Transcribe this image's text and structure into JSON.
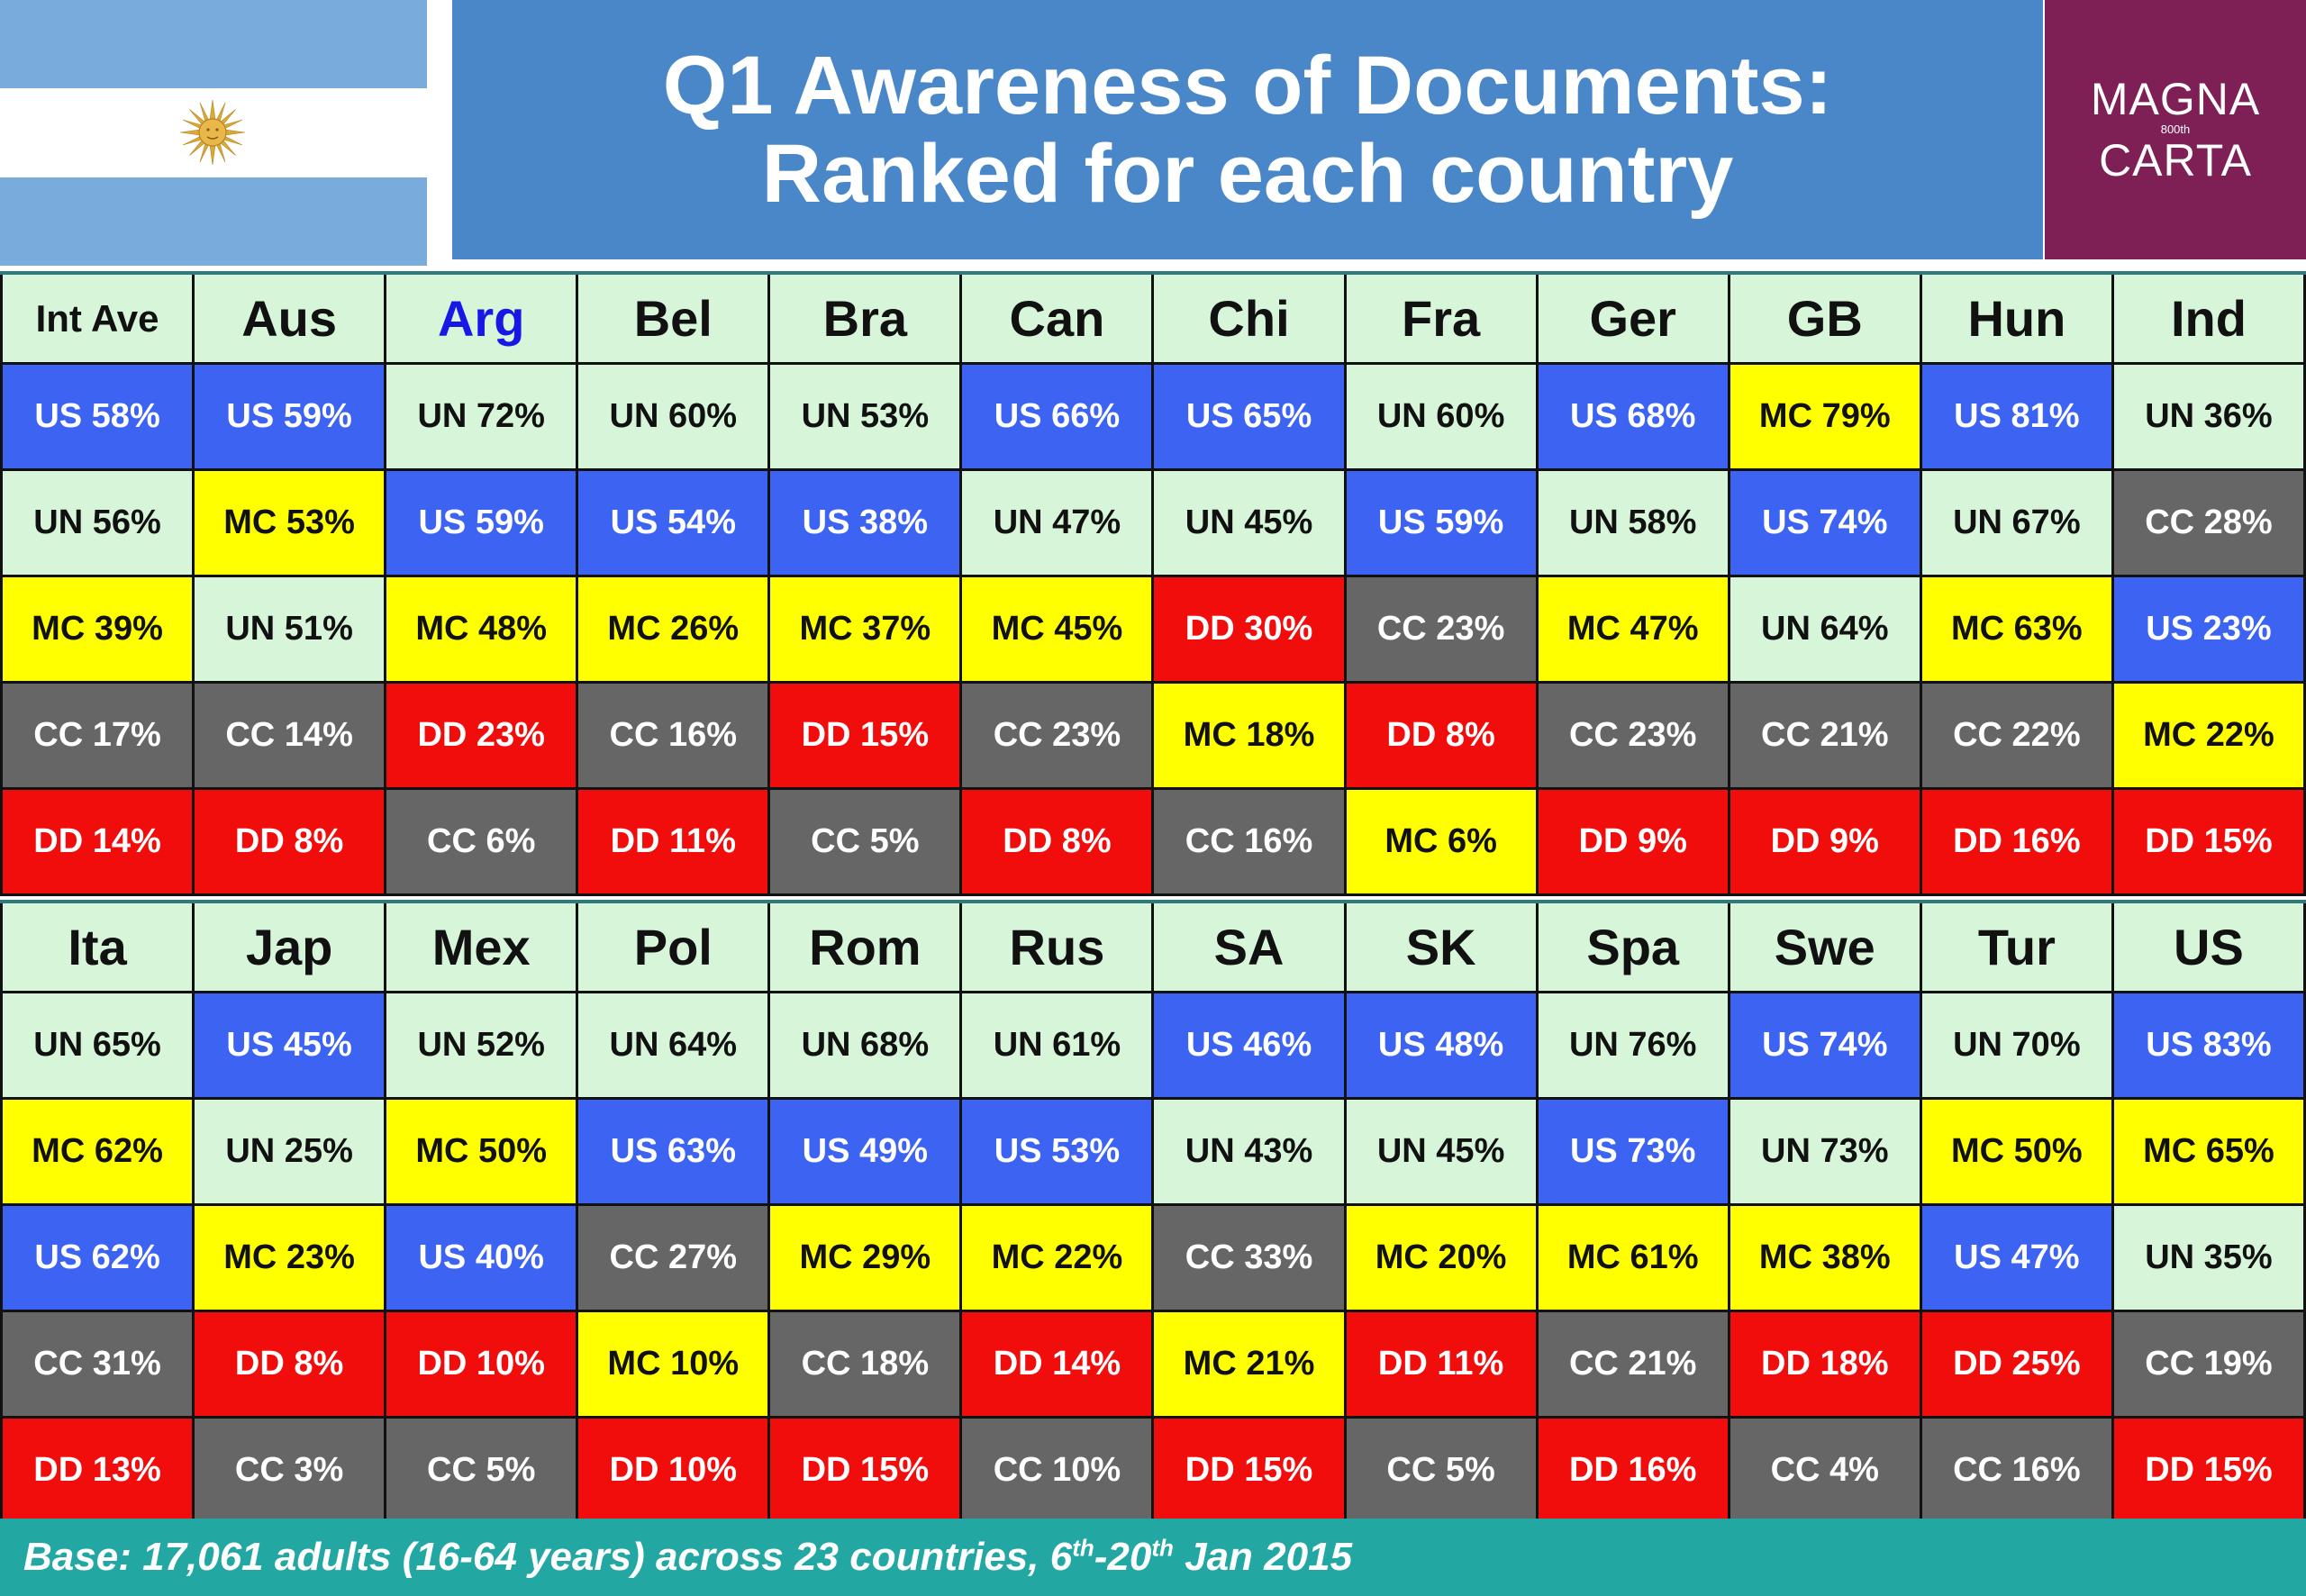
{
  "header": {
    "title_line1": "Q1 Awareness of Documents:",
    "title_line2": "Ranked for each country",
    "logo": {
      "line1": "MAGNA",
      "small": "800th",
      "line2": "CARTA"
    }
  },
  "footer": {
    "prefix": "Base: 17,061 adults (16-64 years) across 23 countries, 6",
    "sup1": "th",
    "mid": "-20",
    "sup2": "th",
    "suffix": " Jan 2015"
  },
  "colors": {
    "US": "#3d63f2",
    "UN": "#d7f5d9",
    "MC": "#ffff00",
    "CC": "#666666",
    "DD": "#f20d0d",
    "title_band": "#4a87c8",
    "logo_bg": "#7e1f56",
    "footer_bg": "#22a7a3",
    "flag_blue": "#79acdd",
    "highlight_header": "#1818e6"
  },
  "chart_data": [
    {
      "type": "table",
      "columns": [
        {
          "label": "Int Ave",
          "cells": [
            {
              "label": "US 58%",
              "doc": "US",
              "value": 58
            },
            {
              "label": "UN 56%",
              "doc": "UN",
              "value": 56
            },
            {
              "label": "MC 39%",
              "doc": "MC",
              "value": 39
            },
            {
              "label": "CC 17%",
              "doc": "CC",
              "value": 17
            },
            {
              "label": "DD 14%",
              "doc": "DD",
              "value": 14
            }
          ]
        },
        {
          "label": "Aus",
          "cells": [
            {
              "label": "US 59%",
              "doc": "US",
              "value": 59
            },
            {
              "label": "MC 53%",
              "doc": "MC",
              "value": 53
            },
            {
              "label": "UN 51%",
              "doc": "UN",
              "value": 51
            },
            {
              "label": "CC 14%",
              "doc": "CC",
              "value": 14
            },
            {
              "label": "DD 8%",
              "doc": "DD",
              "value": 8
            }
          ]
        },
        {
          "label": "Arg",
          "highlight": true,
          "cells": [
            {
              "label": "UN 72%",
              "doc": "UN",
              "value": 72
            },
            {
              "label": "US 59%",
              "doc": "US",
              "value": 59
            },
            {
              "label": "MC 48%",
              "doc": "MC",
              "value": 48
            },
            {
              "label": "DD 23%",
              "doc": "DD",
              "value": 23
            },
            {
              "label": "CC 6%",
              "doc": "CC",
              "value": 6
            }
          ]
        },
        {
          "label": "Bel",
          "cells": [
            {
              "label": "UN 60%",
              "doc": "UN",
              "value": 60
            },
            {
              "label": "US 54%",
              "doc": "US",
              "value": 54
            },
            {
              "label": "MC 26%",
              "doc": "MC",
              "value": 26
            },
            {
              "label": "CC 16%",
              "doc": "CC",
              "value": 16
            },
            {
              "label": "DD 11%",
              "doc": "DD",
              "value": 11
            }
          ]
        },
        {
          "label": "Bra",
          "cells": [
            {
              "label": "UN 53%",
              "doc": "UN",
              "value": 53
            },
            {
              "label": "US 38%",
              "doc": "US",
              "value": 38
            },
            {
              "label": "MC 37%",
              "doc": "MC",
              "value": 37
            },
            {
              "label": "DD 15%",
              "doc": "DD",
              "value": 15
            },
            {
              "label": "CC 5%",
              "doc": "CC",
              "value": 5
            }
          ]
        },
        {
          "label": "Can",
          "cells": [
            {
              "label": "US 66%",
              "doc": "US",
              "value": 66
            },
            {
              "label": "UN 47%",
              "doc": "UN",
              "value": 47
            },
            {
              "label": "MC 45%",
              "doc": "MC",
              "value": 45
            },
            {
              "label": "CC 23%",
              "doc": "CC",
              "value": 23
            },
            {
              "label": "DD 8%",
              "doc": "DD",
              "value": 8
            }
          ]
        },
        {
          "label": "Chi",
          "cells": [
            {
              "label": "US 65%",
              "doc": "US",
              "value": 65
            },
            {
              "label": "UN 45%",
              "doc": "UN",
              "value": 45
            },
            {
              "label": "DD 30%",
              "doc": "DD",
              "value": 30
            },
            {
              "label": "MC 18%",
              "doc": "MC",
              "value": 18
            },
            {
              "label": "CC 16%",
              "doc": "CC",
              "value": 16
            }
          ]
        },
        {
          "label": "Fra",
          "cells": [
            {
              "label": "UN 60%",
              "doc": "UN",
              "value": 60
            },
            {
              "label": "US 59%",
              "doc": "US",
              "value": 59
            },
            {
              "label": "CC 23%",
              "doc": "CC",
              "value": 23
            },
            {
              "label": "DD 8%",
              "doc": "DD",
              "value": 8
            },
            {
              "label": "MC 6%",
              "doc": "MC",
              "value": 6
            }
          ]
        },
        {
          "label": "Ger",
          "cells": [
            {
              "label": "US 68%",
              "doc": "US",
              "value": 68
            },
            {
              "label": "UN 58%",
              "doc": "UN",
              "value": 58
            },
            {
              "label": "MC 47%",
              "doc": "MC",
              "value": 47
            },
            {
              "label": "CC 23%",
              "doc": "CC",
              "value": 23
            },
            {
              "label": "DD 9%",
              "doc": "DD",
              "value": 9
            }
          ]
        },
        {
          "label": "GB",
          "cells": [
            {
              "label": "MC 79%",
              "doc": "MC",
              "value": 79
            },
            {
              "label": "US 74%",
              "doc": "US",
              "value": 74
            },
            {
              "label": "UN 64%",
              "doc": "UN",
              "value": 64
            },
            {
              "label": "CC 21%",
              "doc": "CC",
              "value": 21
            },
            {
              "label": "DD 9%",
              "doc": "DD",
              "value": 9
            }
          ]
        },
        {
          "label": "Hun",
          "cells": [
            {
              "label": "US 81%",
              "doc": "US",
              "value": 81
            },
            {
              "label": "UN 67%",
              "doc": "UN",
              "value": 67
            },
            {
              "label": "MC 63%",
              "doc": "MC",
              "value": 63
            },
            {
              "label": "CC 22%",
              "doc": "CC",
              "value": 22
            },
            {
              "label": "DD 16%",
              "doc": "DD",
              "value": 16
            }
          ]
        },
        {
          "label": "Ind",
          "cells": [
            {
              "label": "UN 36%",
              "doc": "UN",
              "value": 36
            },
            {
              "label": "CC 28%",
              "doc": "CC",
              "value": 28
            },
            {
              "label": "US 23%",
              "doc": "US",
              "value": 23
            },
            {
              "label": "MC 22%",
              "doc": "MC",
              "value": 22
            },
            {
              "label": "DD 15%",
              "doc": "DD",
              "value": 15
            }
          ]
        }
      ]
    },
    {
      "type": "table",
      "columns": [
        {
          "label": "Ita",
          "cells": [
            {
              "label": "UN 65%",
              "doc": "UN",
              "value": 65
            },
            {
              "label": "MC 62%",
              "doc": "MC",
              "value": 62
            },
            {
              "label": "US 62%",
              "doc": "US",
              "value": 62
            },
            {
              "label": "CC 31%",
              "doc": "CC",
              "value": 31
            },
            {
              "label": "DD 13%",
              "doc": "DD",
              "value": 13
            }
          ]
        },
        {
          "label": "Jap",
          "cells": [
            {
              "label": "US 45%",
              "doc": "US",
              "value": 45
            },
            {
              "label": "UN 25%",
              "doc": "UN",
              "value": 25
            },
            {
              "label": "MC 23%",
              "doc": "MC",
              "value": 23
            },
            {
              "label": "DD 8%",
              "doc": "DD",
              "value": 8
            },
            {
              "label": "CC 3%",
              "doc": "CC",
              "value": 3
            }
          ]
        },
        {
          "label": "Mex",
          "cells": [
            {
              "label": "UN 52%",
              "doc": "UN",
              "value": 52
            },
            {
              "label": "MC 50%",
              "doc": "MC",
              "value": 50
            },
            {
              "label": "US 40%",
              "doc": "US",
              "value": 40
            },
            {
              "label": "DD 10%",
              "doc": "DD",
              "value": 10
            },
            {
              "label": "CC 5%",
              "doc": "CC",
              "value": 5
            }
          ]
        },
        {
          "label": "Pol",
          "cells": [
            {
              "label": "UN 64%",
              "doc": "UN",
              "value": 64
            },
            {
              "label": "US 63%",
              "doc": "US",
              "value": 63
            },
            {
              "label": "CC 27%",
              "doc": "CC",
              "value": 27
            },
            {
              "label": "MC 10%",
              "doc": "MC",
              "value": 10
            },
            {
              "label": "DD 10%",
              "doc": "DD",
              "value": 10
            }
          ]
        },
        {
          "label": "Rom",
          "cells": [
            {
              "label": "UN 68%",
              "doc": "UN",
              "value": 68
            },
            {
              "label": "US 49%",
              "doc": "US",
              "value": 49
            },
            {
              "label": "MC 29%",
              "doc": "MC",
              "value": 29
            },
            {
              "label": "CC 18%",
              "doc": "CC",
              "value": 18
            },
            {
              "label": "DD 15%",
              "doc": "DD",
              "value": 15
            }
          ]
        },
        {
          "label": "Rus",
          "cells": [
            {
              "label": "UN 61%",
              "doc": "UN",
              "value": 61
            },
            {
              "label": "US 53%",
              "doc": "US",
              "value": 53
            },
            {
              "label": "MC 22%",
              "doc": "MC",
              "value": 22
            },
            {
              "label": "DD 14%",
              "doc": "DD",
              "value": 14
            },
            {
              "label": "CC 10%",
              "doc": "CC",
              "value": 10
            }
          ]
        },
        {
          "label": "SA",
          "cells": [
            {
              "label": "US 46%",
              "doc": "US",
              "value": 46
            },
            {
              "label": "UN 43%",
              "doc": "UN",
              "value": 43
            },
            {
              "label": "CC 33%",
              "doc": "CC",
              "value": 33
            },
            {
              "label": "MC 21%",
              "doc": "MC",
              "value": 21
            },
            {
              "label": "DD 15%",
              "doc": "DD",
              "value": 15
            }
          ]
        },
        {
          "label": "SK",
          "cells": [
            {
              "label": "US 48%",
              "doc": "US",
              "value": 48
            },
            {
              "label": "UN 45%",
              "doc": "UN",
              "value": 45
            },
            {
              "label": "MC 20%",
              "doc": "MC",
              "value": 20
            },
            {
              "label": "DD 11%",
              "doc": "DD",
              "value": 11
            },
            {
              "label": "CC 5%",
              "doc": "CC",
              "value": 5
            }
          ]
        },
        {
          "label": "Spa",
          "cells": [
            {
              "label": "UN 76%",
              "doc": "UN",
              "value": 76
            },
            {
              "label": "US 73%",
              "doc": "US",
              "value": 73
            },
            {
              "label": "MC 61%",
              "doc": "MC",
              "value": 61
            },
            {
              "label": "CC 21%",
              "doc": "CC",
              "value": 21
            },
            {
              "label": "DD 16%",
              "doc": "DD",
              "value": 16
            }
          ]
        },
        {
          "label": "Swe",
          "cells": [
            {
              "label": "US 74%",
              "doc": "US",
              "value": 74
            },
            {
              "label": "UN 73%",
              "doc": "UN",
              "value": 73
            },
            {
              "label": "MC 38%",
              "doc": "MC",
              "value": 38
            },
            {
              "label": "DD 18%",
              "doc": "DD",
              "value": 18
            },
            {
              "label": "CC 4%",
              "doc": "CC",
              "value": 4
            }
          ]
        },
        {
          "label": "Tur",
          "cells": [
            {
              "label": "UN 70%",
              "doc": "UN",
              "value": 70
            },
            {
              "label": "MC 50%",
              "doc": "MC",
              "value": 50
            },
            {
              "label": "US 47%",
              "doc": "US",
              "value": 47
            },
            {
              "label": "DD 25%",
              "doc": "DD",
              "value": 25
            },
            {
              "label": "CC 16%",
              "doc": "CC",
              "value": 16
            }
          ]
        },
        {
          "label": "US",
          "cells": [
            {
              "label": "US 83%",
              "doc": "US",
              "value": 83
            },
            {
              "label": "MC 65%",
              "doc": "MC",
              "value": 65
            },
            {
              "label": "UN 35%",
              "doc": "UN",
              "value": 35
            },
            {
              "label": "CC 19%",
              "doc": "CC",
              "value": 19
            },
            {
              "label": "DD 15%",
              "doc": "DD",
              "value": 15
            }
          ]
        }
      ]
    }
  ]
}
